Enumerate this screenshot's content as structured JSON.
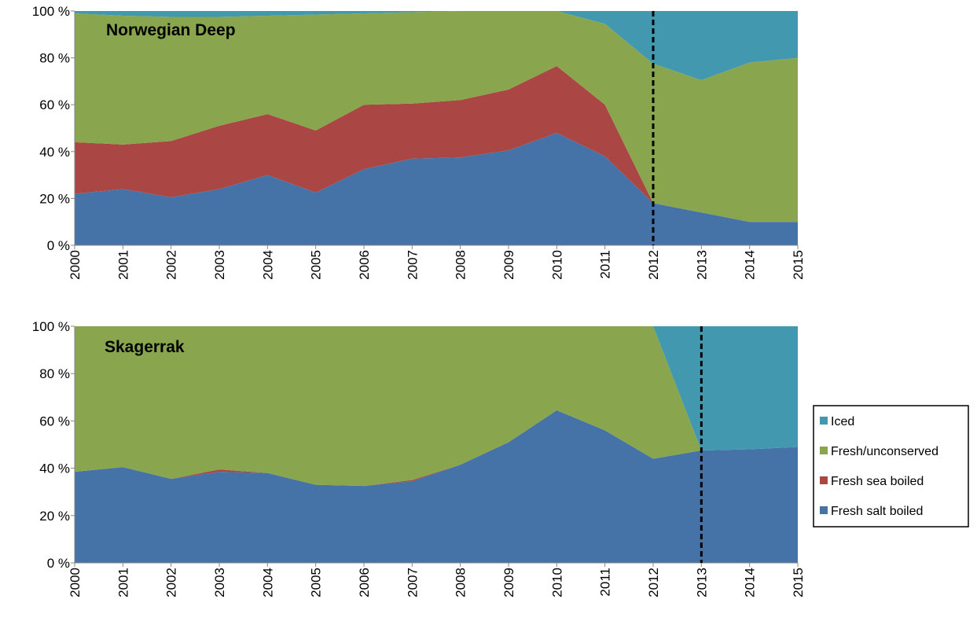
{
  "chart_data": [
    {
      "type": "stacked-area",
      "title": "Norwegian Deep",
      "x": [
        2000,
        2001,
        2002,
        2003,
        2004,
        2005,
        2006,
        2007,
        2008,
        2009,
        2010,
        2011,
        2012,
        2013,
        2014,
        2015
      ],
      "xlim": [
        2000,
        2015
      ],
      "ylim": [
        0,
        100
      ],
      "yticks": [
        {
          "value": 0,
          "label": "0 %"
        },
        {
          "value": 20,
          "label": "20 %"
        },
        {
          "value": 40,
          "label": "40 %"
        },
        {
          "value": 60,
          "label": "60 %"
        },
        {
          "value": 80,
          "label": "80 %"
        },
        {
          "value": 100,
          "label": "100 %"
        }
      ],
      "vline_x": 2012,
      "series": [
        {
          "color": "#4572a7",
          "values": [
            22,
            24,
            20.5,
            24,
            30,
            22.5,
            32.5,
            37,
            37.5,
            40.5,
            48,
            38,
            18,
            14,
            10,
            10
          ]
        },
        {
          "color": "#aa4643",
          "values": [
            22,
            19,
            24,
            27,
            26,
            26.5,
            27.5,
            23.5,
            24.5,
            26,
            28.5,
            22,
            0,
            0,
            0,
            0
          ]
        },
        {
          "color": "#89a54e",
          "values": [
            55,
            55,
            53,
            46.5,
            42,
            49.5,
            39,
            39,
            38,
            33.5,
            23.5,
            34.5,
            59.5,
            56.5,
            68,
            70
          ]
        },
        {
          "color": "#4198af",
          "values": [
            1,
            2,
            2.5,
            2.5,
            2,
            1.5,
            1,
            0.5,
            0,
            0,
            0,
            5.5,
            22.5,
            29.5,
            22,
            20
          ]
        }
      ]
    },
    {
      "type": "stacked-area",
      "title": "Skagerrak",
      "x": [
        2000,
        2001,
        2002,
        2003,
        2004,
        2005,
        2006,
        2007,
        2008,
        2009,
        2010,
        2011,
        2012,
        2013,
        2014,
        2015
      ],
      "xlim": [
        2000,
        2015
      ],
      "ylim": [
        0,
        100
      ],
      "yticks": [
        {
          "value": 0,
          "label": "0 %"
        },
        {
          "value": 20,
          "label": "20 %"
        },
        {
          "value": 40,
          "label": "40 %"
        },
        {
          "value": 60,
          "label": "60 %"
        },
        {
          "value": 80,
          "label": "80 %"
        },
        {
          "value": 100,
          "label": "100 %"
        }
      ],
      "vline_x": 2013,
      "legend": "right",
      "series": [
        {
          "name": "Fresh salt boiled",
          "color": "#4572a7",
          "values": [
            38.5,
            40.5,
            35.5,
            38.5,
            38,
            33,
            32.5,
            34.5,
            41.5,
            51,
            64.5,
            56,
            44,
            47.5,
            48,
            49
          ]
        },
        {
          "name": "Fresh sea boiled",
          "color": "#aa4643",
          "values": [
            0,
            0,
            0,
            1,
            0,
            0,
            0,
            0.5,
            0,
            0,
            0,
            0,
            0,
            0,
            0,
            0
          ]
        },
        {
          "name": "Fresh/unconserved",
          "color": "#89a54e",
          "values": [
            61.5,
            59.5,
            64.5,
            60.5,
            62,
            67,
            67.5,
            65,
            58.5,
            49,
            35.5,
            44,
            56,
            0,
            0,
            0
          ]
        },
        {
          "name": "Iced",
          "color": "#4198af",
          "values": [
            0,
            0,
            0,
            0,
            0,
            0,
            0,
            0,
            0,
            0,
            0,
            0,
            0,
            52.5,
            52,
            51
          ]
        }
      ]
    }
  ]
}
